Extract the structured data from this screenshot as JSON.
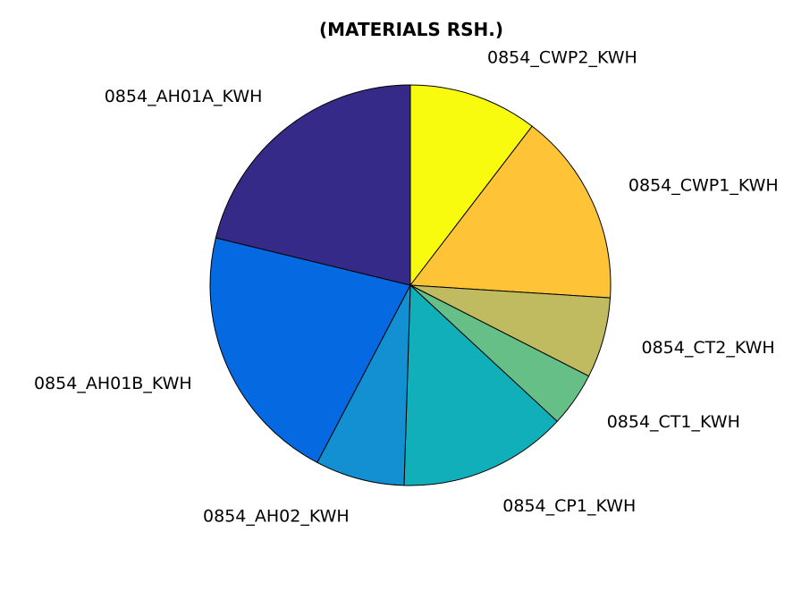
{
  "chart_data": {
    "type": "pie",
    "title": "(MATERIALS RSH.)",
    "start": "top",
    "direction": "clockwise",
    "slices": [
      {
        "label": "0854_CWP2_KWH",
        "value": 10.4,
        "color": "#f9fb0e"
      },
      {
        "label": "0854_CWP1_KWH",
        "value": 15.6,
        "color": "#fec337"
      },
      {
        "label": "0854_CT2_KWH",
        "value": 6.5,
        "color": "#c0bb60"
      },
      {
        "label": "0854_CT1_KWH",
        "value": 4.4,
        "color": "#66bf87"
      },
      {
        "label": "0854_CP1_KWH",
        "value": 13.6,
        "color": "#10afba"
      },
      {
        "label": "0854_AH02_KWH",
        "value": 7.2,
        "color": "#1290d1"
      },
      {
        "label": "0854_AH01B_KWH",
        "value": 21.1,
        "color": "#0569e1"
      },
      {
        "label": "0854_AH01A_KWH",
        "value": 21.2,
        "color": "#352a87"
      }
    ]
  }
}
